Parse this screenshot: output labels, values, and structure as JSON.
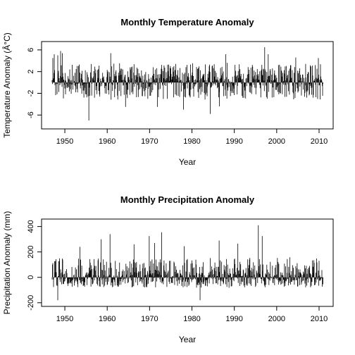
{
  "chart_data": [
    {
      "type": "line",
      "style": "histogram-bars",
      "title": "Monthly Temperature Anomaly",
      "xlabel": "Year",
      "ylabel": "Temperature Anomaly (Â°C)",
      "xlim": [
        1947,
        2011
      ],
      "ylim": [
        -7,
        6.5
      ],
      "xticks": [
        1950,
        1960,
        1970,
        1980,
        1990,
        2000,
        2010
      ],
      "yticks": [
        -6,
        -2,
        2,
        6
      ],
      "x_tick_labels": [
        "1950",
        "1960",
        "1970",
        "1980",
        "1990",
        "2000",
        "2010"
      ],
      "y_tick_labels": [
        "-6",
        "-2",
        "2",
        "6"
      ],
      "baseline": 0,
      "start_year": 1947.0,
      "months": 768,
      "extremes": [
        {
          "x": 1947.2,
          "y": 4.5
        },
        {
          "x": 1947.5,
          "y": 5.2
        },
        {
          "x": 1948.3,
          "y": 5.0
        },
        {
          "x": 1949.0,
          "y": 5.8
        },
        {
          "x": 1949.4,
          "y": 5.4
        },
        {
          "x": 1955.7,
          "y": -7.0
        },
        {
          "x": 1960.8,
          "y": 5.4
        },
        {
          "x": 1964.3,
          "y": -4.5
        },
        {
          "x": 1971.8,
          "y": -4.5
        },
        {
          "x": 1978.0,
          "y": -5.0
        },
        {
          "x": 1984.3,
          "y": -5.8
        },
        {
          "x": 1986.5,
          "y": -4.4
        },
        {
          "x": 1988.0,
          "y": 5.2
        },
        {
          "x": 1997.2,
          "y": 6.5
        },
        {
          "x": 1998.0,
          "y": 5.2
        },
        {
          "x": 2004.5,
          "y": 4.6
        },
        {
          "x": 2009.8,
          "y": 4.5
        }
      ]
    },
    {
      "type": "line",
      "style": "histogram-bars",
      "title": "Monthly Precipitation Anomaly",
      "xlabel": "Year",
      "ylabel": "Precipitation Anomaly (mm)",
      "xlim": [
        1947,
        2011
      ],
      "ylim": [
        -190,
        420
      ],
      "xticks": [
        1950,
        1960,
        1970,
        1980,
        1990,
        2000,
        2010
      ],
      "yticks": [
        -200,
        0,
        200,
        400
      ],
      "x_tick_labels": [
        "1950",
        "1960",
        "1970",
        "1980",
        "1990",
        "2000",
        "2010"
      ],
      "y_tick_labels": [
        "-200",
        "0",
        "200",
        "400"
      ],
      "baseline": 0,
      "start_year": 1947.0,
      "months": 768,
      "extremes": [
        {
          "x": 1948.3,
          "y": -180
        },
        {
          "x": 1953.6,
          "y": 240
        },
        {
          "x": 1958.6,
          "y": 300
        },
        {
          "x": 1960.7,
          "y": 340
        },
        {
          "x": 1966.3,
          "y": 260
        },
        {
          "x": 1969.9,
          "y": 325
        },
        {
          "x": 1971.2,
          "y": 270
        },
        {
          "x": 1972.8,
          "y": 355
        },
        {
          "x": 1978.2,
          "y": 245
        },
        {
          "x": 1981.9,
          "y": -180
        },
        {
          "x": 1986.4,
          "y": 290
        },
        {
          "x": 1990.8,
          "y": 265
        },
        {
          "x": 1995.7,
          "y": 410
        },
        {
          "x": 1996.6,
          "y": 325
        }
      ]
    }
  ]
}
